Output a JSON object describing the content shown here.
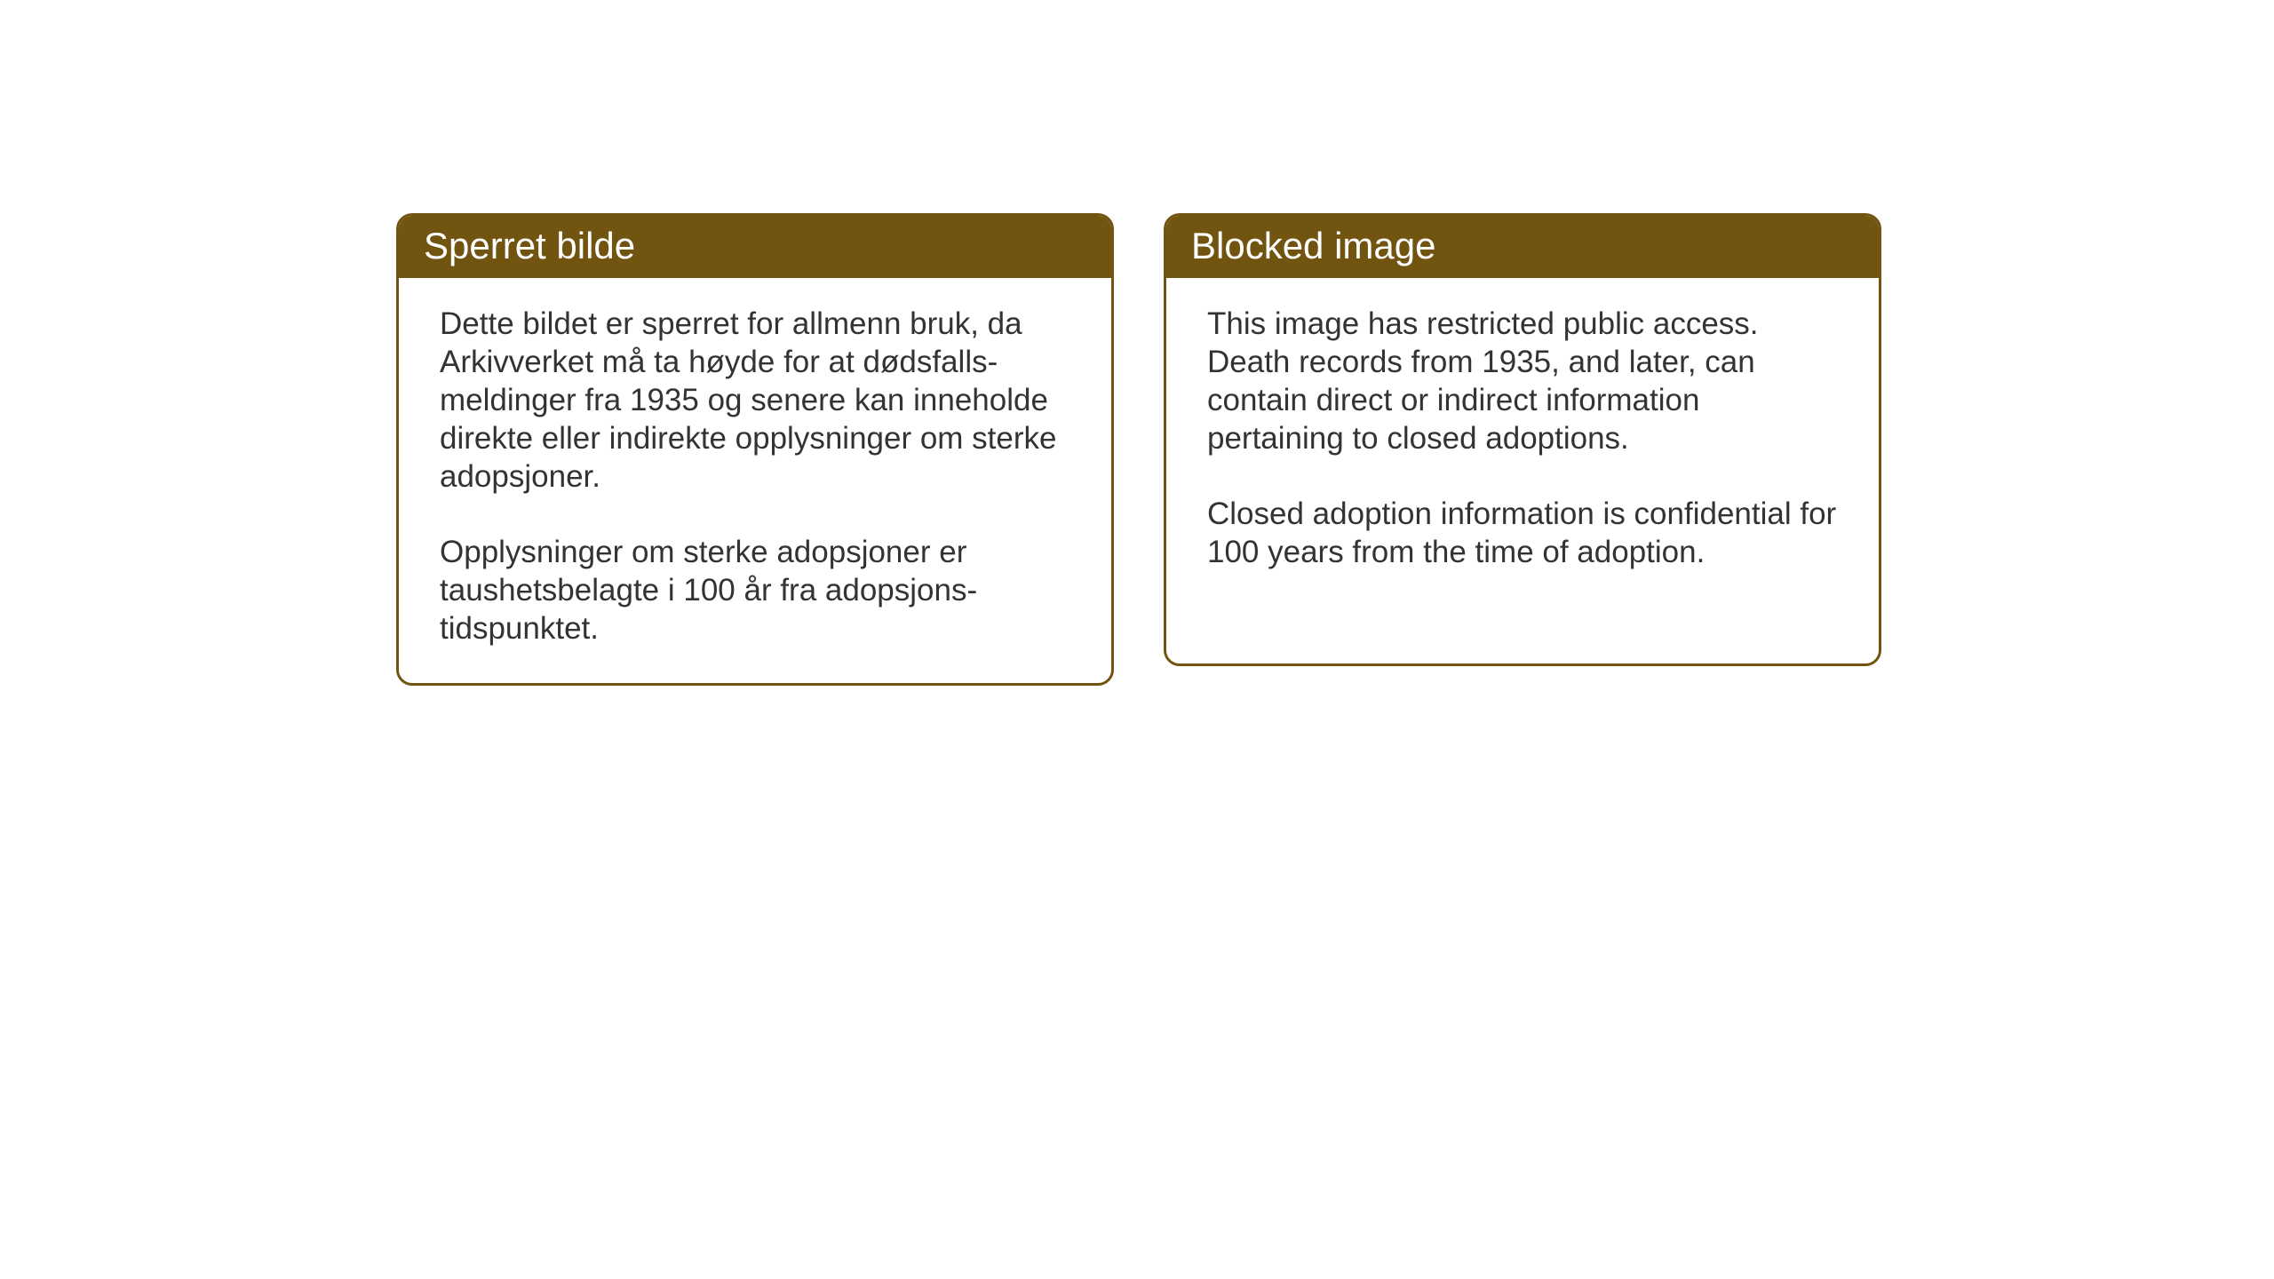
{
  "cards": {
    "norwegian": {
      "title": "Sperret bilde",
      "paragraph1": "Dette bildet er sperret for allmenn bruk, da Arkivverket må ta høyde for at dødsfalls-meldinger fra 1935 og senere kan inneholde direkte eller indirekte opplysninger om sterke adopsjoner.",
      "paragraph2": "Opplysninger om sterke adopsjoner er taushetsbelagte i 100 år fra adopsjons-tidspunktet."
    },
    "english": {
      "title": "Blocked image",
      "paragraph1": "This image has restricted public access. Death records from 1935, and later, can contain direct or indirect information pertaining to closed adoptions.",
      "paragraph2": "Closed adoption information is confidential for 100 years from the time of adoption."
    }
  },
  "style": {
    "background_color": "#ffffff",
    "card_border_color": "#725411",
    "card_header_bg": "#725411",
    "card_header_text_color": "#ffffff",
    "body_text_color": "#333333",
    "header_fontsize": 42,
    "body_fontsize": 35,
    "border_radius": 18,
    "border_width": 3
  }
}
